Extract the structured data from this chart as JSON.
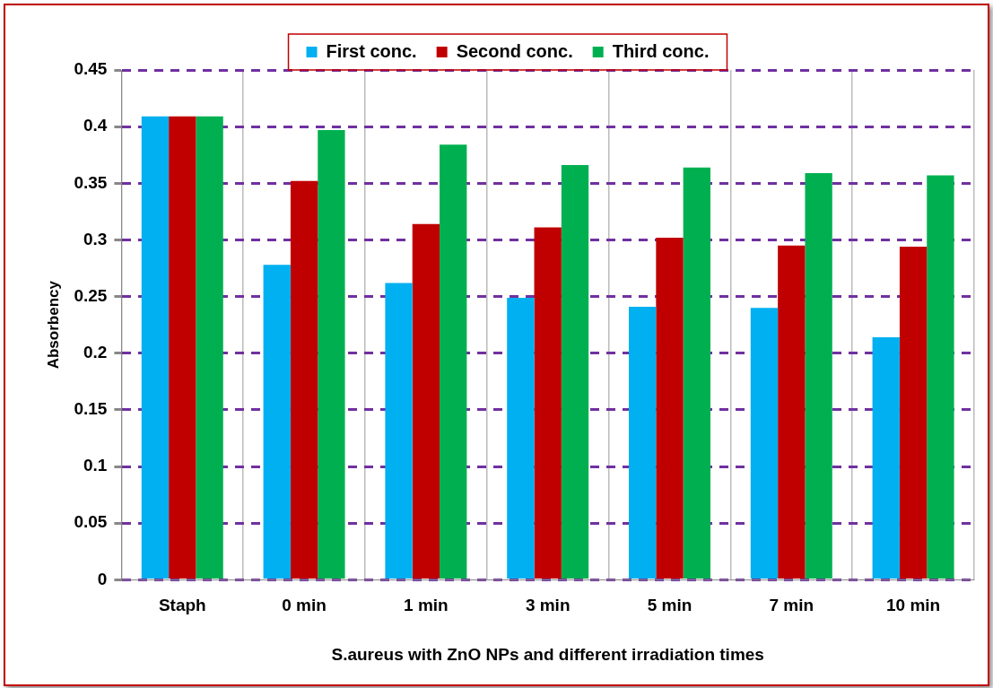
{
  "chart_data": {
    "type": "bar",
    "xlabel": "S.aureus with ZnO NPs and different irradiation times",
    "ylabel": "Absorbency",
    "categories": [
      "Staph",
      "0 min",
      "1 min",
      "3 min",
      "5 min",
      "7 min",
      "10 min"
    ],
    "series": [
      {
        "name": "First conc.",
        "color": "#00b0f0",
        "values": [
          0.409,
          0.278,
          0.262,
          0.249,
          0.241,
          0.24,
          0.214
        ]
      },
      {
        "name": "Second conc.",
        "color": "#c00000",
        "values": [
          0.409,
          0.352,
          0.314,
          0.311,
          0.302,
          0.295,
          0.294
        ]
      },
      {
        "name": "Third conc.",
        "color": "#00b050",
        "values": [
          0.409,
          0.397,
          0.384,
          0.366,
          0.364,
          0.359,
          0.357
        ]
      }
    ],
    "ylim": [
      0,
      0.45
    ],
    "yticks": [
      0,
      0.05,
      0.1,
      0.15,
      0.2,
      0.25,
      0.3,
      0.35,
      0.4,
      0.45
    ],
    "grid": true,
    "legend": "top"
  }
}
